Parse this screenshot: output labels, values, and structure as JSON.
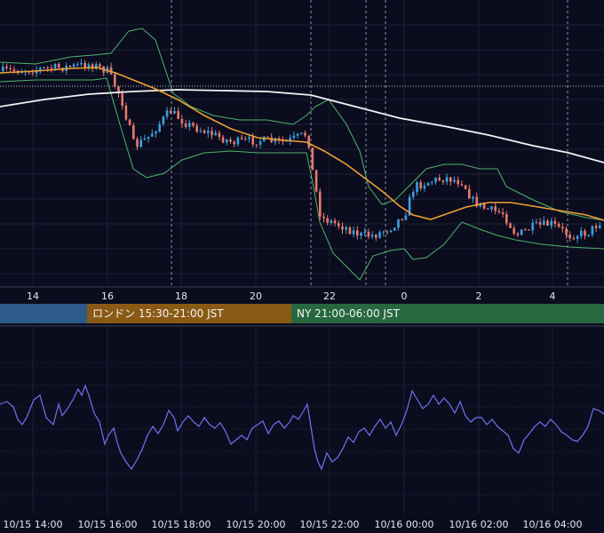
{
  "chart_data": [
    {
      "type": "candlestick",
      "indicators": [
        "bollinger-bands",
        "moving-average-short",
        "moving-average-long"
      ],
      "x_tick_labels": [
        "14",
        "16",
        "18",
        "20",
        "22",
        "0",
        "2",
        "4"
      ],
      "grid": true,
      "colors": {
        "up": "#3b9fe0",
        "down": "#e8786a",
        "ma_short": "#f0a030",
        "ma_long": "#f2f2f2",
        "bollinger": "#4fb46a",
        "background": "#0b0d1f",
        "grid": "#1c2033"
      }
    },
    {
      "type": "line",
      "series": [
        {
          "color": "#6e73f0"
        }
      ],
      "x_tick_labels": [
        "10/15 14:00",
        "10/15 16:00",
        "10/15 18:00",
        "10/15 20:00",
        "10/15 22:00",
        "10/16 00:00",
        "10/16 02:00",
        "10/16 04:00"
      ],
      "grid": true
    }
  ],
  "sessions": [
    {
      "label": "",
      "color": "#2c5a8a"
    },
    {
      "label": "ロンドン 15:30-21:00 JST",
      "color": "#8a5a14"
    },
    {
      "label": "NY 21:00-06:00 JST",
      "color": "#27683f"
    }
  ]
}
